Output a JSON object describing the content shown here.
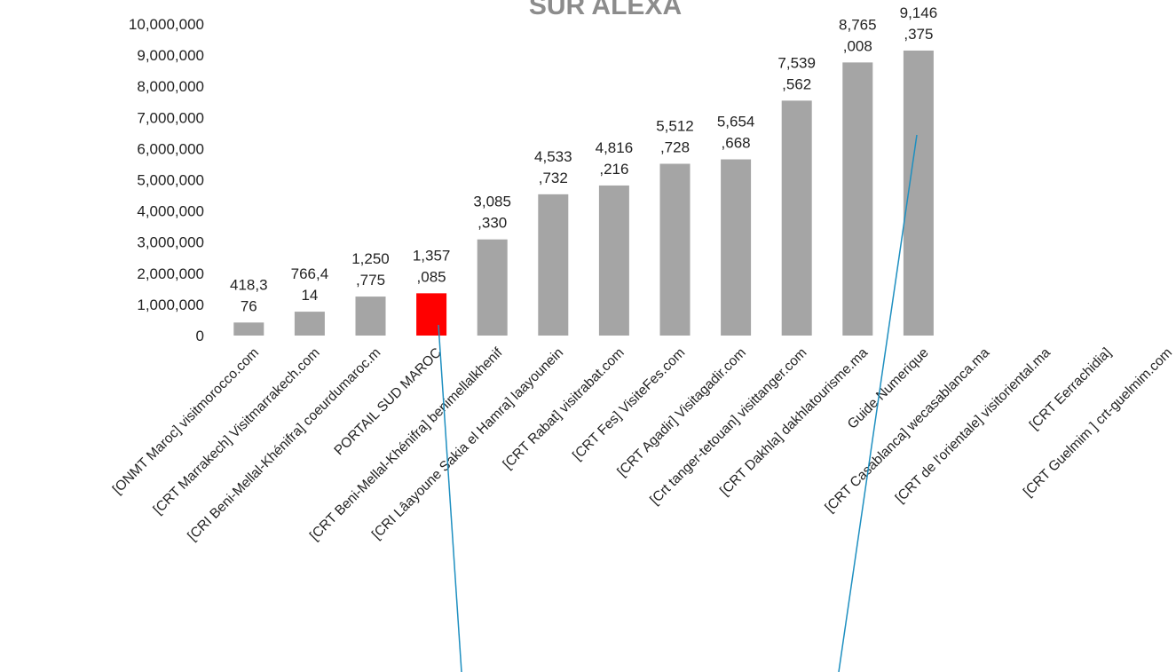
{
  "chart_data": {
    "type": "bar",
    "title": "SUR ALEXA",
    "categories": [
      "[ONMT Maroc] visitmorocco.com",
      "[CRT Marrakech]  Visitmarrakech.com",
      "[CRI Beni-Mellal-Khénifra]  coeurdumaroc.m",
      "PORTAIL SUD MAROC",
      "[CRT Beni-Mellal-Khénifra]  benimellalkhenif",
      "[CRI Lâayoune Sakia el Hamra]  laayounein",
      "[CRT Rabat]  visitrabat.com",
      "[CRT Fes]  VisiteFes.com",
      "[CRT Agadir] Visitagadir.com",
      "[Crt tanger-tetouan] visittanger.com",
      "[CRT Dakhla]   dakhlatourisme.ma",
      "Guide Numerique",
      "[CRT Casablanca]  wecasablanca.ma",
      "[CRT de l'orientale]   visitoriental.ma",
      "[CRT Eerrachidia]",
      "[CRT  Guelmim  ] crt-guelmim.com"
    ],
    "values": [
      418376,
      766414,
      1250775,
      1357085,
      3085330,
      4533732,
      4816216,
      5512728,
      5654668,
      7539562,
      8765008,
      9146375,
      null,
      null,
      null,
      null
    ],
    "value_labels": [
      "418,376",
      "766,414",
      "1,250,775",
      "1,357,085",
      "3,085,330",
      "4,533,732",
      "4,816,216",
      "5,512,728",
      "5,654,668",
      "7,539,562",
      "8,765,008",
      "9,146,375",
      null,
      null,
      null,
      null
    ],
    "colors": [
      "#a5a5a5",
      "#a5a5a5",
      "#a5a5a5",
      "#ff0000",
      "#a5a5a5",
      "#a5a5a5",
      "#a5a5a5",
      "#a5a5a5",
      "#a5a5a5",
      "#a5a5a5",
      "#a5a5a5",
      "#a5a5a5",
      null,
      null,
      null,
      null
    ],
    "ylim": [
      0,
      10000000
    ],
    "yticks": [
      {
        "value": 0,
        "label": "0"
      },
      {
        "value": 1000000,
        "label": "1,000,000"
      },
      {
        "value": 2000000,
        "label": "2,000,000"
      },
      {
        "value": 3000000,
        "label": "3,000,000"
      },
      {
        "value": 4000000,
        "label": "4,000,000"
      },
      {
        "value": 5000000,
        "label": "5,000,000"
      },
      {
        "value": 6000000,
        "label": "6,000,000"
      },
      {
        "value": 7000000,
        "label": "7,000,000"
      },
      {
        "value": 8000000,
        "label": "8,000,000"
      },
      {
        "value": 9000000,
        "label": "9,000,000"
      },
      {
        "value": 10000000,
        "label": "10,000,000"
      }
    ],
    "grid": false
  }
}
